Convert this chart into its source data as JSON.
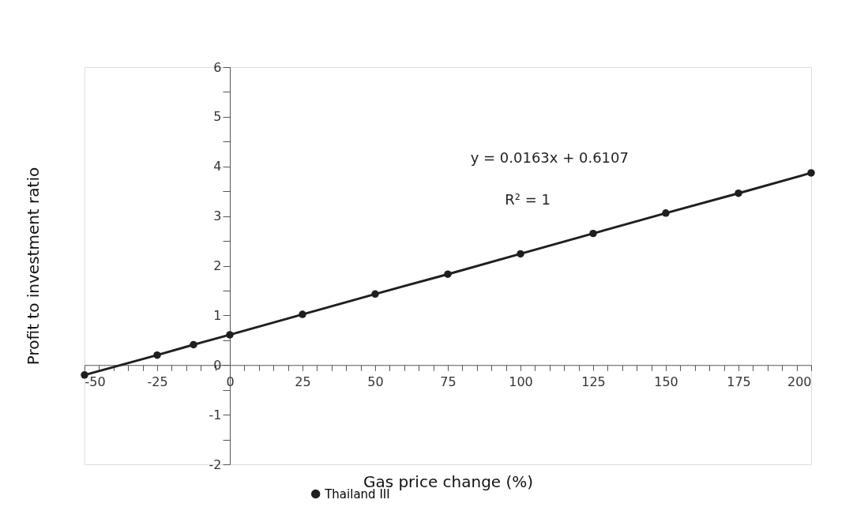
{
  "chart_data": {
    "type": "line",
    "xlabel": "Gas price change (%)",
    "ylabel": "Profit to investment ratio",
    "x": [
      -50,
      -25,
      -12.5,
      0,
      25,
      50,
      75,
      100,
      125,
      150,
      175,
      200
    ],
    "series": [
      {
        "name": "Thailand III",
        "color": "#1f1f1f",
        "values": [
          -0.2,
          0.2,
          0.41,
          0.61,
          1.02,
          1.43,
          1.83,
          2.24,
          2.65,
          3.06,
          3.46,
          3.87
        ]
      }
    ],
    "annotations": [
      "y = 0.0163x + 0.6107",
      "R² = 1"
    ],
    "xlim": [
      -50,
      200
    ],
    "xticks": [
      -50,
      {
        "value": -45,
        "label": null
      },
      {
        "value": -40,
        "label": null
      },
      {
        "value": -35,
        "label": null
      },
      {
        "value": -30,
        "label": null
      },
      -25,
      {
        "value": -20,
        "label": null
      },
      {
        "value": -15,
        "label": null
      },
      {
        "value": -10,
        "label": null
      },
      {
        "value": -5,
        "label": null
      },
      0,
      {
        "value": 5,
        "label": null
      },
      {
        "value": 10,
        "label": null
      },
      {
        "value": 15,
        "label": null
      },
      {
        "value": 20,
        "label": null
      },
      25,
      {
        "value": 30,
        "label": null
      },
      {
        "value": 35,
        "label": null
      },
      {
        "value": 40,
        "label": null
      },
      {
        "value": 45,
        "label": null
      },
      50,
      {
        "value": 55,
        "label": null
      },
      {
        "value": 60,
        "label": null
      },
      {
        "value": 65,
        "label": null
      },
      {
        "value": 70,
        "label": null
      },
      75,
      {
        "value": 80,
        "label": null
      },
      {
        "value": 85,
        "label": null
      },
      {
        "value": 90,
        "label": null
      },
      {
        "value": 95,
        "label": null
      },
      100,
      {
        "value": 105,
        "label": null
      },
      {
        "value": 110,
        "label": null
      },
      {
        "value": 115,
        "label": null
      },
      {
        "value": 120,
        "label": null
      },
      125,
      {
        "value": 130,
        "label": null
      },
      {
        "value": 135,
        "label": null
      },
      {
        "value": 140,
        "label": null
      },
      {
        "value": 145,
        "label": null
      },
      150,
      {
        "value": 155,
        "label": null
      },
      {
        "value": 160,
        "label": null
      },
      {
        "value": 165,
        "label": null
      },
      {
        "value": 170,
        "label": null
      },
      175,
      {
        "value": 180,
        "label": null
      },
      {
        "value": 185,
        "label": null
      },
      {
        "value": 190,
        "label": null
      },
      {
        "value": 195,
        "label": null
      },
      200
    ],
    "ylim": [
      -2,
      6
    ],
    "yticks": [
      -2,
      {
        "value": -1.5,
        "label": null
      },
      -1,
      {
        "value": -0.5,
        "label": null
      },
      0,
      {
        "value": 0.5,
        "label": null
      },
      1,
      {
        "value": 1.5,
        "label": null
      },
      2,
      {
        "value": 2.5,
        "label": null
      },
      3,
      {
        "value": 3.5,
        "label": null
      },
      4,
      {
        "value": 4.5,
        "label": null
      },
      5,
      {
        "value": 5.5,
        "label": null
      },
      6
    ],
    "grid": false,
    "legend": "bottom",
    "marker": "circle",
    "line_style": "solid"
  }
}
